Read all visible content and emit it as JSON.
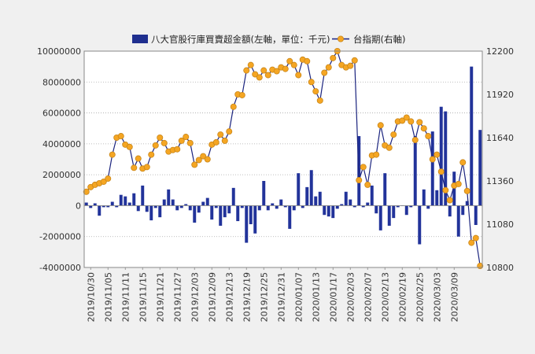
{
  "chart_data": {
    "type": "bar+line",
    "title": "",
    "legend": [
      {
        "name": "八大官股行庫買賣超金額(左軸，單位：千元)",
        "kind": "bar",
        "color": "#1f2f8f"
      },
      {
        "name": "台指期(右軸)",
        "kind": "line",
        "color": "#1a237e",
        "marker_color": "#f5a623"
      }
    ],
    "legend_position": "top",
    "left_axis": {
      "min": -4000000,
      "max": 10000000,
      "ticks": [
        "10000000",
        "8000000",
        "6000000",
        "4000000",
        "2000000",
        "0",
        "-2000000",
        "-4000000"
      ]
    },
    "right_axis": {
      "min": 10800,
      "max": 12200,
      "ticks": [
        "12200",
        "11920",
        "11640",
        "11360",
        "11080",
        "10800"
      ]
    },
    "x_tick_labels": [
      "2019/10/30",
      "2019/11/05",
      "2019/11/11",
      "2019/11/15",
      "2019/11/21",
      "2019/11/27",
      "2019/12/03",
      "2019/12/09",
      "2019/12/13",
      "2019/12/19",
      "2019/12/25",
      "2019/12/31",
      "2020/01/07",
      "2020/01/13",
      "2020/01/17",
      "2020/02/03",
      "2020/02/07",
      "2020/02/13",
      "2020/02/19",
      "2020/02/25",
      "2020/03/03",
      "2020/03/09"
    ],
    "x_tick_every": 4,
    "grid": "horizontal dotted",
    "bar_values": [
      200000,
      -150000,
      150000,
      -650000,
      -100000,
      -100000,
      250000,
      -100000,
      700000,
      600000,
      200000,
      800000,
      -350000,
      1300000,
      -400000,
      -950000,
      -150000,
      -750000,
      400000,
      1050000,
      400000,
      -300000,
      -150000,
      100000,
      -300000,
      -1100000,
      -450000,
      250000,
      500000,
      -900000,
      -150000,
      -1300000,
      -750000,
      -500000,
      1150000,
      -1000000,
      -150000,
      -2400000,
      -1200000,
      -1800000,
      -300000,
      1600000,
      -300000,
      150000,
      -200000,
      400000,
      -100000,
      -1500000,
      -300000,
      2100000,
      -150000,
      1200000,
      2300000,
      600000,
      900000,
      -600000,
      -700000,
      -800000,
      -200000,
      100000,
      900000,
      400000,
      -100000,
      4500000,
      -100000,
      200000,
      1300000,
      -500000,
      -1600000,
      2100000,
      -1300000,
      -800000,
      -100000,
      0,
      -600000,
      -100000,
      4500000,
      -2500000,
      1050000,
      -200000,
      4800000,
      1000000,
      6400000,
      6100000,
      -700000,
      2200000,
      -2000000,
      -600000,
      300000,
      9000000,
      -1250000,
      4900000
    ],
    "line_values": [
      11290,
      11320,
      11335,
      11345,
      11355,
      11375,
      11530,
      11640,
      11650,
      11595,
      11580,
      11445,
      11505,
      11440,
      11450,
      11530,
      11590,
      11640,
      11605,
      11550,
      11560,
      11565,
      11620,
      11645,
      11605,
      11465,
      11495,
      11520,
      11500,
      11595,
      11610,
      11660,
      11620,
      11680,
      11840,
      11920,
      11915,
      12075,
      12110,
      12050,
      12030,
      12075,
      12045,
      12080,
      12070,
      12095,
      12085,
      12135,
      12110,
      12045,
      12145,
      12135,
      12000,
      11940,
      11880,
      12060,
      12095,
      12155,
      12200,
      12110,
      12095,
      12105,
      12140,
      11365,
      11450,
      11335,
      11525,
      11530,
      11720,
      11590,
      11575,
      11660,
      11745,
      11750,
      11770,
      11745,
      11625,
      11740,
      11700,
      11650,
      11500,
      11530,
      11420,
      11300,
      11235,
      11330,
      11340,
      11480,
      11295,
      10960,
      10990,
      10810
    ]
  }
}
